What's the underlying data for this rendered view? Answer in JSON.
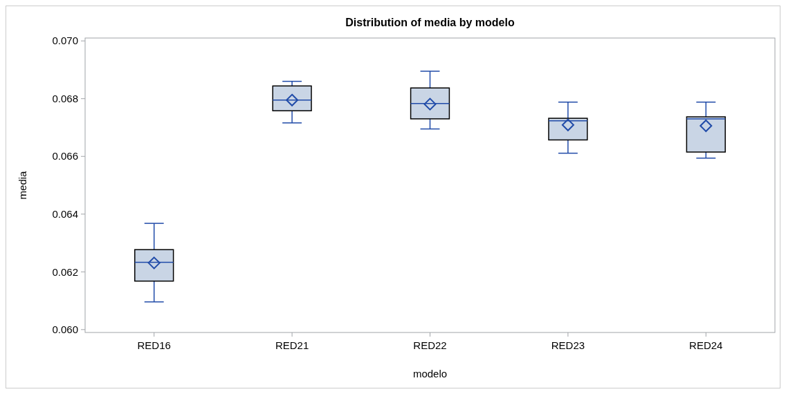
{
  "chart_data": {
    "type": "box",
    "title": "Distribution of media by modelo",
    "xlabel": "modelo",
    "ylabel": "media",
    "categories": [
      "RED16",
      "RED21",
      "RED22",
      "RED23",
      "RED24"
    ],
    "boxes": [
      {
        "low": 0.06096,
        "q1": 0.06168,
        "median": 0.06233,
        "q3": 0.06277,
        "high": 0.06368,
        "mean": 0.06231
      },
      {
        "low": 0.06716,
        "q1": 0.06758,
        "median": 0.06795,
        "q3": 0.06844,
        "high": 0.0686,
        "mean": 0.06795
      },
      {
        "low": 0.06695,
        "q1": 0.0673,
        "median": 0.06783,
        "q3": 0.06837,
        "high": 0.06895,
        "mean": 0.06781
      },
      {
        "low": 0.06611,
        "q1": 0.06657,
        "median": 0.06723,
        "q3": 0.06732,
        "high": 0.06788,
        "mean": 0.06709
      },
      {
        "low": 0.06594,
        "q1": 0.06615,
        "median": 0.0673,
        "q3": 0.06737,
        "high": 0.06788,
        "mean": 0.06706
      }
    ],
    "color": "#c9d5e5",
    "ylim": [
      0.0599,
      0.0701
    ],
    "yticks": [
      {
        "value": 0.06,
        "label": "0.060"
      },
      {
        "value": 0.062,
        "label": "0.062"
      },
      {
        "value": 0.064,
        "label": "0.064"
      },
      {
        "value": 0.066,
        "label": "0.066"
      },
      {
        "value": 0.068,
        "label": "0.068"
      },
      {
        "value": 0.07,
        "label": "0.070"
      }
    ],
    "marker": "diamond",
    "grid": false
  }
}
